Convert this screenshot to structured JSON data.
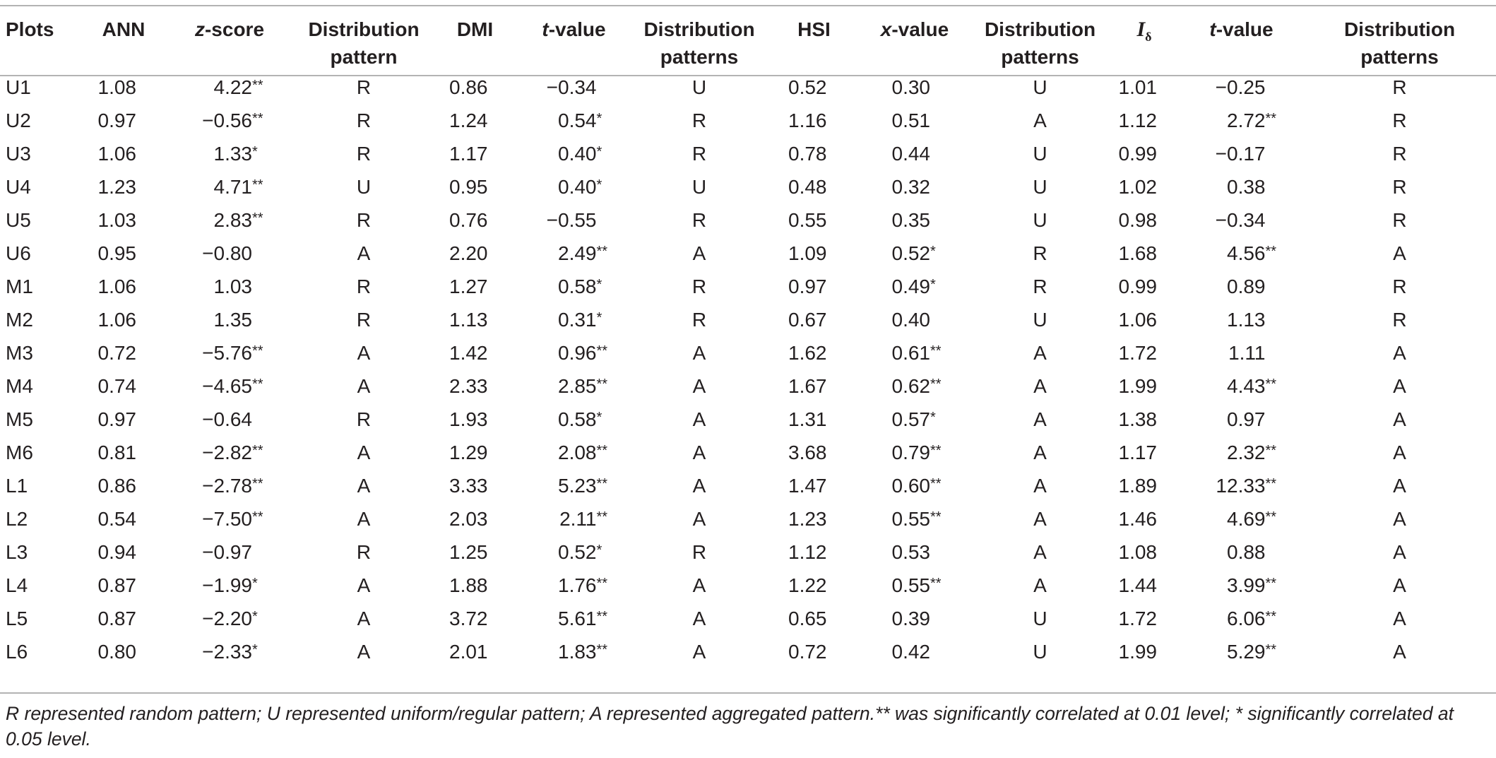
{
  "headers": {
    "plots": "Plots",
    "ann": "ANN",
    "zscore_italic": "z",
    "zscore_rest": "-score",
    "dist1_line1": "Distribution",
    "dist1_line2": "pattern",
    "dmi": "DMI",
    "tvalue1_italic": "t",
    "tvalue1_rest": "-value",
    "dist2_line1": "Distribution",
    "dist2_line2": "patterns",
    "hsi": "HSI",
    "xvalue_italic": "x",
    "xvalue_rest": "-value",
    "dist3_line1": "Distribution",
    "dist3_line2": "patterns",
    "idelta_main": "I",
    "idelta_sub": "δ",
    "tvalue2_italic": "t",
    "tvalue2_rest": "-value",
    "dist4_line1": "Distribution",
    "dist4_line2": "patterns"
  },
  "rows": [
    {
      "plot": "U1",
      "ann": "1.08",
      "z": "4.22",
      "zs": "**",
      "p1": "R",
      "dmi": "0.86",
      "t1": "−0.34",
      "t1s": "",
      "p2": "U",
      "hsi": "0.52",
      "x": "0.30",
      "xs": "",
      "p3": "U",
      "id": "1.01",
      "t2": "−0.25",
      "t2s": "",
      "p4": "R"
    },
    {
      "plot": "U2",
      "ann": "0.97",
      "z": "−0.56",
      "zs": "**",
      "p1": "R",
      "dmi": "1.24",
      "t1": "0.54",
      "t1s": "*",
      "p2": "R",
      "hsi": "1.16",
      "x": "0.51",
      "xs": "",
      "p3": "A",
      "id": "1.12",
      "t2": "2.72",
      "t2s": "**",
      "p4": "R"
    },
    {
      "plot": "U3",
      "ann": "1.06",
      "z": "1.33",
      "zs": "*",
      "p1": "R",
      "dmi": "1.17",
      "t1": "0.40",
      "t1s": "*",
      "p2": "R",
      "hsi": "0.78",
      "x": "0.44",
      "xs": "",
      "p3": "U",
      "id": "0.99",
      "t2": "−0.17",
      "t2s": "",
      "p4": "R"
    },
    {
      "plot": "U4",
      "ann": "1.23",
      "z": "4.71",
      "zs": "**",
      "p1": "U",
      "dmi": "0.95",
      "t1": "0.40",
      "t1s": "*",
      "p2": "U",
      "hsi": "0.48",
      "x": "0.32",
      "xs": "",
      "p3": "U",
      "id": "1.02",
      "t2": "0.38",
      "t2s": "",
      "p4": "R"
    },
    {
      "plot": "U5",
      "ann": "1.03",
      "z": "2.83",
      "zs": "**",
      "p1": "R",
      "dmi": "0.76",
      "t1": "−0.55",
      "t1s": "",
      "p2": "R",
      "hsi": "0.55",
      "x": "0.35",
      "xs": "",
      "p3": "U",
      "id": "0.98",
      "t2": "−0.34",
      "t2s": "",
      "p4": "R"
    },
    {
      "plot": "U6",
      "ann": "0.95",
      "z": "−0.80",
      "zs": "",
      "p1": "A",
      "dmi": "2.20",
      "t1": "2.49",
      "t1s": "**",
      "p2": "A",
      "hsi": "1.09",
      "x": "0.52",
      "xs": "*",
      "p3": "R",
      "id": "1.68",
      "t2": "4.56",
      "t2s": "**",
      "p4": "A"
    },
    {
      "plot": "M1",
      "ann": "1.06",
      "z": "1.03",
      "zs": "",
      "p1": "R",
      "dmi": "1.27",
      "t1": "0.58",
      "t1s": "*",
      "p2": "R",
      "hsi": "0.97",
      "x": "0.49",
      "xs": "*",
      "p3": "R",
      "id": "0.99",
      "t2": "0.89",
      "t2s": "",
      "p4": "R"
    },
    {
      "plot": "M2",
      "ann": "1.06",
      "z": "1.35",
      "zs": "",
      "p1": "R",
      "dmi": "1.13",
      "t1": "0.31",
      "t1s": "*",
      "p2": "R",
      "hsi": "0.67",
      "x": "0.40",
      "xs": "",
      "p3": "U",
      "id": "1.06",
      "t2": "1.13",
      "t2s": "",
      "p4": "R"
    },
    {
      "plot": "M3",
      "ann": "0.72",
      "z": "−5.76",
      "zs": "**",
      "p1": "A",
      "dmi": "1.42",
      "t1": "0.96",
      "t1s": "**",
      "p2": "A",
      "hsi": "1.62",
      "x": "0.61",
      "xs": "**",
      "p3": "A",
      "id": "1.72",
      "t2": "1.11",
      "t2s": "",
      "p4": "A"
    },
    {
      "plot": "M4",
      "ann": "0.74",
      "z": "−4.65",
      "zs": "**",
      "p1": "A",
      "dmi": "2.33",
      "t1": "2.85",
      "t1s": "**",
      "p2": "A",
      "hsi": "1.67",
      "x": "0.62",
      "xs": "**",
      "p3": "A",
      "id": "1.99",
      "t2": "4.43",
      "t2s": "**",
      "p4": "A"
    },
    {
      "plot": "M5",
      "ann": "0.97",
      "z": "−0.64",
      "zs": "",
      "p1": "R",
      "dmi": "1.93",
      "t1": "0.58",
      "t1s": "*",
      "p2": "A",
      "hsi": "1.31",
      "x": "0.57",
      "xs": "*",
      "p3": "A",
      "id": "1.38",
      "t2": "0.97",
      "t2s": "",
      "p4": "A"
    },
    {
      "plot": "M6",
      "ann": "0.81",
      "z": "−2.82",
      "zs": "**",
      "p1": "A",
      "dmi": "1.29",
      "t1": "2.08",
      "t1s": "**",
      "p2": "A",
      "hsi": "3.68",
      "x": "0.79",
      "xs": "**",
      "p3": "A",
      "id": "1.17",
      "t2": "2.32",
      "t2s": "**",
      "p4": "A"
    },
    {
      "plot": "L1",
      "ann": "0.86",
      "z": "−2.78",
      "zs": "**",
      "p1": "A",
      "dmi": "3.33",
      "t1": "5.23",
      "t1s": "**",
      "p2": "A",
      "hsi": "1.47",
      "x": "0.60",
      "xs": "**",
      "p3": "A",
      "id": "1.89",
      "t2": "12.33",
      "t2s": "**",
      "p4": "A"
    },
    {
      "plot": "L2",
      "ann": "0.54",
      "z": "−7.50",
      "zs": "**",
      "p1": "A",
      "dmi": "2.03",
      "t1": "2.11",
      "t1s": "**",
      "p2": "A",
      "hsi": "1.23",
      "x": "0.55",
      "xs": "**",
      "p3": "A",
      "id": "1.46",
      "t2": "4.69",
      "t2s": "**",
      "p4": "A"
    },
    {
      "plot": "L3",
      "ann": "0.94",
      "z": "−0.97",
      "zs": "",
      "p1": "R",
      "dmi": "1.25",
      "t1": "0.52",
      "t1s": "*",
      "p2": "R",
      "hsi": "1.12",
      "x": "0.53",
      "xs": "",
      "p3": "A",
      "id": "1.08",
      "t2": "0.88",
      "t2s": "",
      "p4": "A"
    },
    {
      "plot": "L4",
      "ann": "0.87",
      "z": "−1.99",
      "zs": "*",
      "p1": "A",
      "dmi": "1.88",
      "t1": "1.76",
      "t1s": "**",
      "p2": "A",
      "hsi": "1.22",
      "x": "0.55",
      "xs": "**",
      "p3": "A",
      "id": "1.44",
      "t2": "3.99",
      "t2s": "**",
      "p4": "A"
    },
    {
      "plot": "L5",
      "ann": "0.87",
      "z": "−2.20",
      "zs": "*",
      "p1": "A",
      "dmi": "3.72",
      "t1": "5.61",
      "t1s": "**",
      "p2": "A",
      "hsi": "0.65",
      "x": "0.39",
      "xs": "",
      "p3": "U",
      "id": "1.72",
      "t2": "6.06",
      "t2s": "**",
      "p4": "A"
    },
    {
      "plot": "L6",
      "ann": "0.80",
      "z": "−2.33",
      "zs": "*",
      "p1": "A",
      "dmi": "2.01",
      "t1": "1.83",
      "t1s": "**",
      "p2": "A",
      "hsi": "0.72",
      "x": "0.42",
      "xs": "",
      "p3": "U",
      "id": "1.99",
      "t2": "5.29",
      "t2s": "**",
      "p4": "A"
    }
  ],
  "footnote": "R represented random pattern; U represented uniform/regular pattern; A represented aggregated pattern.** was significantly correlated at 0.01 level; * significantly correlated at 0.05 level."
}
